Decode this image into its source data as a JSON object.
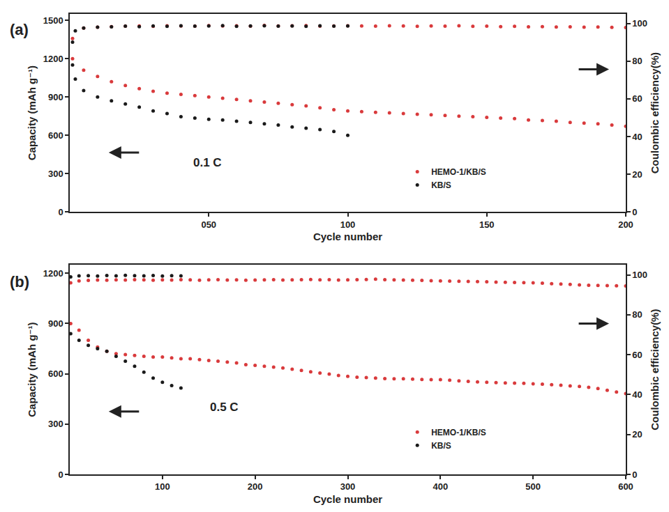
{
  "chart_data": [
    {
      "type": "scatter",
      "title": "(a)",
      "annotations": [
        "0.1 C"
      ],
      "x_label": "Cycle number",
      "y_label": "Capacity (mAh g⁻¹)",
      "y2_label": "Coulombic efficiency(%)",
      "xlim": [
        0,
        200
      ],
      "xticks": [
        {
          "value": 50,
          "label": "050"
        },
        100,
        150,
        200
      ],
      "ylim": [
        0,
        1550
      ],
      "yticks": [
        0,
        300,
        600,
        900,
        1200,
        1500
      ],
      "y2lim": [
        0,
        105
      ],
      "y2ticks": [
        0,
        20,
        40,
        60,
        80,
        100
      ],
      "grid": false,
      "legend": "lower right",
      "marker": "circle",
      "series": [
        {
          "name": "HEMO-1/KB/S",
          "color": "#d93a3c",
          "x": [
            1,
            5,
            10,
            15,
            20,
            25,
            30,
            35,
            40,
            45,
            50,
            55,
            60,
            65,
            70,
            75,
            80,
            85,
            90,
            95,
            100,
            105,
            110,
            115,
            120,
            125,
            130,
            135,
            140,
            145,
            150,
            155,
            160,
            165,
            170,
            175,
            180,
            185,
            190,
            195,
            200
          ],
          "values": [
            1200,
            1110,
            1060,
            1020,
            990,
            965,
            945,
            930,
            920,
            910,
            900,
            890,
            880,
            870,
            860,
            850,
            840,
            830,
            815,
            800,
            790,
            785,
            780,
            775,
            770,
            765,
            760,
            755,
            750,
            745,
            740,
            735,
            730,
            720,
            715,
            710,
            700,
            695,
            690,
            680,
            670
          ]
        },
        {
          "name": "KB/S",
          "color": "#1a1a1a",
          "x": [
            1,
            2,
            5,
            10,
            15,
            20,
            25,
            30,
            35,
            40,
            45,
            50,
            55,
            60,
            65,
            70,
            75,
            80,
            85,
            90,
            95,
            100
          ],
          "values": [
            1150,
            1040,
            950,
            900,
            870,
            845,
            820,
            790,
            770,
            745,
            735,
            725,
            720,
            710,
            700,
            690,
            680,
            665,
            655,
            645,
            630,
            600
          ]
        },
        {
          "name": "HEMO-1/KB/S",
          "color": "#d93a3c",
          "axis": "y2",
          "x": [
            1,
            5,
            10,
            15,
            20,
            25,
            30,
            35,
            40,
            45,
            50,
            55,
            60,
            65,
            70,
            75,
            80,
            85,
            90,
            95,
            100,
            105,
            110,
            115,
            120,
            125,
            130,
            135,
            140,
            145,
            150,
            155,
            160,
            165,
            170,
            175,
            180,
            185,
            190,
            195,
            200
          ],
          "values": [
            92,
            97.5,
            98,
            98.3,
            98.5,
            98.6,
            98.4,
            98.7,
            98.6,
            98.5,
            98.8,
            98.6,
            98.7,
            98.5,
            98.9,
            98.6,
            98.7,
            98.8,
            98.5,
            98.6,
            98.7,
            98.6,
            98.5,
            98.7,
            98.6,
            98.4,
            98.6,
            98.5,
            98.7,
            98.4,
            98.5,
            98.3,
            98.4,
            98.2,
            98.3,
            98.1,
            98.2,
            98.0,
            98.1,
            97.9,
            97.8
          ]
        },
        {
          "name": "KB/S",
          "color": "#1a1a1a",
          "axis": "y2",
          "x": [
            1,
            2,
            5,
            10,
            15,
            20,
            25,
            30,
            35,
            40,
            45,
            50,
            55,
            60,
            65,
            70,
            75,
            80,
            85,
            90,
            95,
            100
          ],
          "values": [
            90,
            96,
            97.5,
            98,
            98.2,
            98.5,
            98.3,
            98.6,
            98.4,
            98.7,
            98.5,
            98.6,
            98.8,
            98.4,
            98.6,
            98.7,
            98.5,
            98.6,
            98.4,
            98.7,
            98.5,
            98.6
          ]
        }
      ]
    },
    {
      "type": "scatter",
      "title": "(b)",
      "annotations": [
        "0.5 C"
      ],
      "x_label": "Cycle number",
      "y_label": "Capacity (mAh g⁻¹)",
      "y2_label": "Coulombic efficiency(%)",
      "xlim": [
        0,
        600
      ],
      "xticks": [
        100,
        200,
        300,
        400,
        500,
        600
      ],
      "ylim": [
        0,
        1250
      ],
      "yticks": [
        0,
        300,
        600,
        900,
        1200
      ],
      "y2lim": [
        0,
        105
      ],
      "y2ticks": [
        0,
        20,
        40,
        60,
        80,
        100
      ],
      "grid": false,
      "legend": "lower right",
      "marker": "circle",
      "series": [
        {
          "name": "HEMO-1/KB/S",
          "color": "#d93a3c",
          "x": [
            1,
            10,
            20,
            30,
            40,
            50,
            60,
            70,
            80,
            90,
            100,
            110,
            120,
            130,
            140,
            150,
            160,
            170,
            180,
            190,
            200,
            210,
            220,
            230,
            240,
            250,
            260,
            270,
            280,
            290,
            300,
            310,
            320,
            330,
            340,
            350,
            360,
            370,
            380,
            390,
            400,
            410,
            420,
            430,
            440,
            450,
            460,
            470,
            480,
            490,
            500,
            510,
            520,
            530,
            540,
            550,
            560,
            570,
            580,
            590,
            600
          ],
          "values": [
            900,
            860,
            800,
            760,
            735,
            720,
            715,
            710,
            705,
            700,
            700,
            695,
            690,
            690,
            685,
            680,
            675,
            670,
            665,
            655,
            650,
            645,
            640,
            635,
            628,
            620,
            612,
            605,
            598,
            590,
            585,
            580,
            578,
            575,
            572,
            570,
            570,
            568,
            566,
            565,
            565,
            562,
            558,
            555,
            552,
            550,
            548,
            546,
            545,
            543,
            540,
            538,
            535,
            532,
            528,
            525,
            520,
            512,
            502,
            492,
            482
          ]
        },
        {
          "name": "KB/S",
          "color": "#1a1a1a",
          "x": [
            1,
            10,
            20,
            30,
            40,
            50,
            60,
            70,
            80,
            90,
            100,
            110,
            120
          ],
          "values": [
            840,
            800,
            770,
            750,
            735,
            705,
            675,
            645,
            610,
            575,
            550,
            530,
            515
          ]
        },
        {
          "name": "HEMO-1/KB/S",
          "color": "#d93a3c",
          "axis": "y2",
          "x": [
            1,
            10,
            20,
            30,
            40,
            50,
            60,
            70,
            80,
            90,
            100,
            110,
            120,
            130,
            140,
            150,
            160,
            170,
            180,
            190,
            200,
            210,
            220,
            230,
            240,
            250,
            260,
            270,
            280,
            290,
            300,
            310,
            320,
            330,
            340,
            350,
            360,
            370,
            380,
            390,
            400,
            410,
            420,
            430,
            440,
            450,
            460,
            470,
            480,
            490,
            500,
            510,
            520,
            530,
            540,
            550,
            560,
            570,
            580,
            590,
            600
          ],
          "values": [
            96,
            97,
            97.2,
            97.4,
            97.3,
            97.5,
            97.4,
            97.6,
            97.5,
            97.3,
            97.5,
            97.4,
            97.6,
            97.5,
            97.3,
            97.5,
            97.6,
            97.4,
            97.5,
            97.3,
            97.4,
            97.5,
            97.6,
            97.4,
            97.5,
            97.6,
            97.7,
            97.5,
            97.6,
            97.4,
            97.5,
            97.6,
            97.7,
            97.8,
            97.6,
            97.5,
            97.4,
            97.3,
            97.2,
            97.1,
            97.0,
            96.9,
            96.8,
            96.7,
            96.6,
            96.5,
            96.4,
            96.3,
            96.2,
            96.1,
            96.0,
            95.8,
            95.6,
            95.4,
            95.2,
            95.0,
            94.8,
            94.7,
            94.6,
            94.5,
            94.4
          ]
        },
        {
          "name": "KB/S",
          "color": "#1a1a1a",
          "axis": "y2",
          "x": [
            1,
            10,
            20,
            30,
            40,
            50,
            60,
            70,
            80,
            90,
            100,
            110,
            120
          ],
          "values": [
            99,
            99.5,
            99.6,
            99.4,
            99.7,
            99.5,
            99.8,
            99.6,
            99.5,
            99.7,
            99.4,
            99.6,
            99.5
          ]
        }
      ]
    }
  ]
}
